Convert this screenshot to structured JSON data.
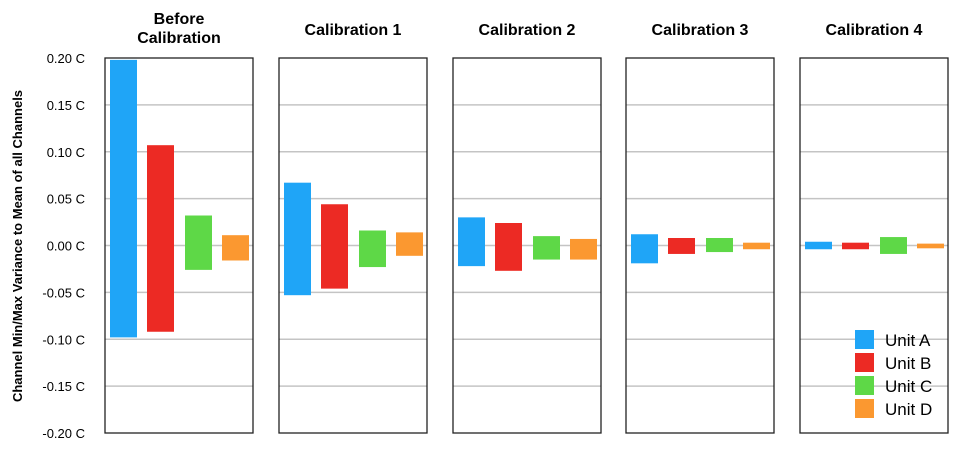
{
  "chart_data": {
    "type": "bar",
    "subtype": "floating-range",
    "ylabel": "Channel Min/Max Variance to Mean of all Channels",
    "ylim": [
      -0.2,
      0.2
    ],
    "yticks": [
      "0.20 C",
      "0.15 C",
      "0.10 C",
      "0.05 C",
      "0.00 C",
      "-0.05 C",
      "-0.10 C",
      "-0.15 C",
      "-0.20 C"
    ],
    "grid": true,
    "legend_position": "bottom-right",
    "series": [
      {
        "name": "Unit A",
        "color": "#1fa5f7"
      },
      {
        "name": "Unit B",
        "color": "#ec2a24"
      },
      {
        "name": "Unit C",
        "color": "#5ed847"
      },
      {
        "name": "Unit D",
        "color": "#fb9830"
      }
    ],
    "panels": [
      {
        "title": [
          "Before",
          "Calibration"
        ],
        "ranges": [
          [
            -0.098,
            0.198
          ],
          [
            -0.092,
            0.107
          ],
          [
            -0.026,
            0.032
          ],
          [
            -0.016,
            0.011
          ]
        ]
      },
      {
        "title": [
          "Calibration 1"
        ],
        "ranges": [
          [
            -0.053,
            0.067
          ],
          [
            -0.046,
            0.044
          ],
          [
            -0.023,
            0.016
          ],
          [
            -0.011,
            0.014
          ]
        ]
      },
      {
        "title": [
          "Calibration 2"
        ],
        "ranges": [
          [
            -0.022,
            0.03
          ],
          [
            -0.027,
            0.024
          ],
          [
            -0.015,
            0.01
          ],
          [
            -0.015,
            0.007
          ]
        ]
      },
      {
        "title": [
          "Calibration 3"
        ],
        "ranges": [
          [
            -0.019,
            0.012
          ],
          [
            -0.009,
            0.008
          ],
          [
            -0.007,
            0.008
          ],
          [
            -0.004,
            0.003
          ]
        ]
      },
      {
        "title": [
          "Calibration 4"
        ],
        "ranges": [
          [
            -0.004,
            0.004
          ],
          [
            -0.004,
            0.003
          ],
          [
            -0.009,
            0.009
          ],
          [
            -0.003,
            0.002
          ]
        ]
      }
    ]
  }
}
